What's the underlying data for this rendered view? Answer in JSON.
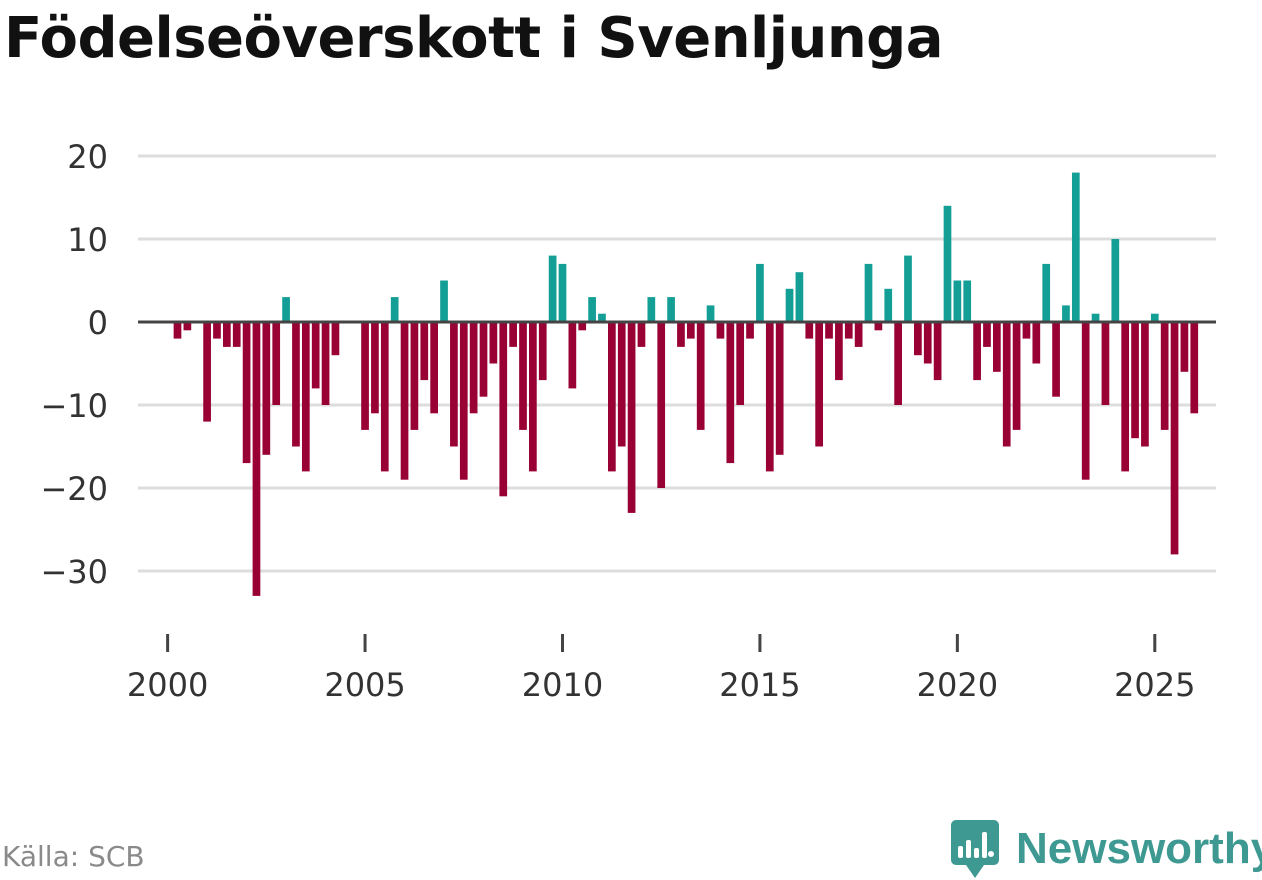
{
  "title": "Födelseöverskott i Svenljunga",
  "source": "Källa: SCB",
  "brand": {
    "name": "Newsworthy",
    "icon": "newsworthy-logo-icon"
  },
  "colors": {
    "positive": "#139e96",
    "negative": "#990033",
    "grid": "#dddddd",
    "zero": "#444444",
    "text": "#333333",
    "brand": "#3d9991"
  },
  "chart_data": {
    "type": "bar",
    "title": "Födelseöverskott i Svenljunga",
    "xlabel": "",
    "ylabel": "",
    "ylim": [
      -36,
      22
    ],
    "xlim": [
      1999.25,
      2026.55
    ],
    "y_ticks": [
      20,
      10,
      0,
      -10,
      -20,
      -30
    ],
    "y_tick_labels": [
      "20",
      "10",
      "0",
      "−10",
      "−20",
      "−30"
    ],
    "x_ticks": [
      2000,
      2005,
      2010,
      2015,
      2020,
      2025
    ],
    "x_tick_labels": [
      "2000",
      "2005",
      "2010",
      "2015",
      "2020",
      "2025"
    ],
    "grid": true,
    "series": [
      {
        "name": "Födelseöverskott",
        "start_year": 2000,
        "periods_per_year": 4,
        "values": [
          0,
          -2,
          -1,
          0,
          -12,
          -2,
          -3,
          -3,
          -17,
          -33,
          -16,
          -10,
          3,
          -15,
          -18,
          -8,
          -10,
          -4,
          0,
          0,
          -13,
          -11,
          -18,
          3,
          -19,
          -13,
          -7,
          -11,
          5,
          -15,
          -19,
          -11,
          -9,
          -5,
          -21,
          -3,
          -13,
          -18,
          -7,
          8,
          7,
          -8,
          -1,
          3,
          1,
          -18,
          -15,
          -23,
          -3,
          3,
          -20,
          3,
          -3,
          -2,
          -13,
          2,
          -2,
          -17,
          -10,
          -2,
          7,
          -18,
          -16,
          4,
          6,
          -2,
          -15,
          -2,
          -7,
          -2,
          -3,
          7,
          -1,
          4,
          -10,
          8,
          -4,
          -5,
          -7,
          14,
          5,
          5,
          -7,
          -3,
          -6,
          -15,
          -13,
          -2,
          -5,
          7,
          -9,
          2,
          18,
          -19,
          1,
          -10,
          10,
          -18,
          -14,
          -15,
          1,
          -13,
          -28,
          -6,
          -11
        ]
      }
    ]
  }
}
